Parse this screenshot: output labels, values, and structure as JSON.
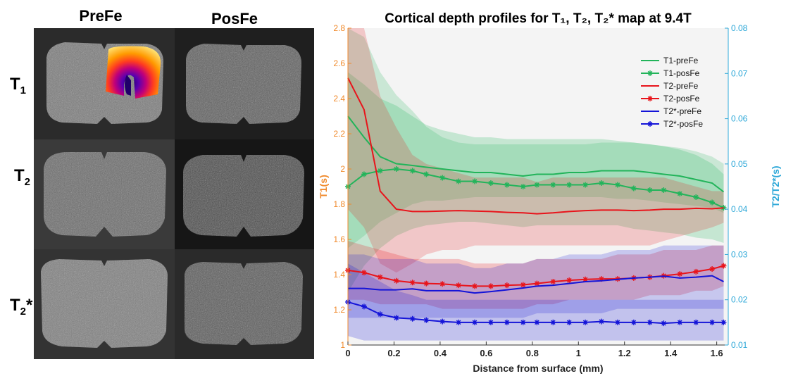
{
  "figure": {
    "column_headers": [
      "PreFe",
      "PosFe"
    ],
    "row_labels": [
      {
        "base": "T",
        "sub": "1",
        "sup": ""
      },
      {
        "base": "T",
        "sub": "2",
        "sup": ""
      },
      {
        "base": "T",
        "sub": "2",
        "sup": "*"
      }
    ]
  },
  "chart_data": {
    "type": "line",
    "title": "Cortical depth profiles for T₁, T₂, T₂* map at 9.4T",
    "xlabel": "Distance from surface (mm)",
    "ylabel_left": "T1(s)",
    "ylabel_right": "T2/T2*(s)",
    "xlim": [
      0,
      1.65
    ],
    "ylim_left": [
      1.0,
      2.8
    ],
    "ylim_right": [
      0.01,
      0.08
    ],
    "xticks": [
      "0",
      "0.2",
      "0.4",
      "0.6",
      "0.8",
      "1",
      "1.2",
      "1.4",
      "1.6"
    ],
    "yticks_left": [
      "1",
      "1.2",
      "1.4",
      "1.6",
      "1.8",
      "2",
      "2.2",
      "2.4",
      "2.6",
      "2.8"
    ],
    "yticks_right": [
      "0.01",
      "0.02",
      "0.03",
      "0.04",
      "0.05",
      "0.06",
      "0.07",
      "0.08"
    ],
    "left_axis_color": "#f08a2c",
    "right_axis_color": "#2ea8d8",
    "grid": false,
    "legend_position": "top-right",
    "x": [
      0,
      0.07,
      0.14,
      0.21,
      0.28,
      0.34,
      0.41,
      0.48,
      0.55,
      0.62,
      0.69,
      0.76,
      0.82,
      0.89,
      0.96,
      1.03,
      1.1,
      1.17,
      1.24,
      1.31,
      1.37,
      1.44,
      1.51,
      1.58,
      1.63
    ],
    "series": [
      {
        "name": "T1-preFe",
        "axis": "left",
        "color": "#22b45a",
        "marker": "none",
        "values": [
          2.3,
          2.18,
          2.07,
          2.03,
          2.02,
          2.01,
          2.0,
          1.99,
          1.98,
          1.98,
          1.97,
          1.96,
          1.97,
          1.97,
          1.98,
          1.98,
          1.99,
          1.99,
          1.99,
          1.98,
          1.97,
          1.96,
          1.94,
          1.92,
          1.87
        ],
        "band": [
          2.9,
          2.75,
          2.55,
          2.42,
          2.33,
          2.24,
          2.18,
          2.15,
          2.14,
          2.14,
          2.14,
          2.14,
          2.14,
          2.14,
          2.14,
          2.14,
          2.15,
          2.15,
          2.15,
          2.14,
          2.13,
          2.12,
          2.1,
          2.07,
          2.03
        ],
        "band_low": [
          1.55,
          1.62,
          1.7,
          1.75,
          1.8,
          1.82,
          1.82,
          1.83,
          1.84,
          1.84,
          1.84,
          1.84,
          1.84,
          1.84,
          1.84,
          1.84,
          1.84,
          1.83,
          1.83,
          1.82,
          1.81,
          1.8,
          1.79,
          1.78,
          1.75
        ]
      },
      {
        "name": "T1-posFe",
        "axis": "left",
        "color": "#22b45a",
        "marker": "star",
        "values": [
          1.9,
          1.97,
          1.99,
          2.0,
          1.99,
          1.97,
          1.95,
          1.93,
          1.93,
          1.92,
          1.91,
          1.9,
          1.91,
          1.91,
          1.91,
          1.91,
          1.92,
          1.91,
          1.89,
          1.88,
          1.88,
          1.86,
          1.84,
          1.81,
          1.78
        ],
        "band": [
          2.55,
          2.48,
          2.4,
          2.36,
          2.3,
          2.25,
          2.22,
          2.2,
          2.18,
          2.18,
          2.17,
          2.17,
          2.17,
          2.17,
          2.17,
          2.17,
          2.17,
          2.16,
          2.15,
          2.14,
          2.13,
          2.11,
          2.08,
          2.03,
          1.97
        ],
        "band_low": [
          1.3,
          1.45,
          1.55,
          1.62,
          1.66,
          1.68,
          1.69,
          1.7,
          1.7,
          1.69,
          1.68,
          1.67,
          1.68,
          1.68,
          1.68,
          1.68,
          1.68,
          1.68,
          1.66,
          1.65,
          1.64,
          1.63,
          1.61,
          1.6,
          1.58
        ]
      },
      {
        "name": "T2-preFe",
        "axis": "right",
        "color": "#e8141b",
        "marker": "none",
        "values": [
          0.069,
          0.062,
          0.044,
          0.04,
          0.0395,
          0.0395,
          0.0396,
          0.0397,
          0.0396,
          0.0395,
          0.0393,
          0.0392,
          0.039,
          0.0392,
          0.0395,
          0.0397,
          0.0398,
          0.0398,
          0.0397,
          0.0398,
          0.04,
          0.04,
          0.0402,
          0.0401,
          0.0403
        ],
        "band": [
          0.09,
          0.082,
          0.065,
          0.058,
          0.052,
          0.05,
          0.049,
          0.048,
          0.047,
          0.047,
          0.047,
          0.047,
          0.046,
          0.047,
          0.047,
          0.047,
          0.047,
          0.047,
          0.047,
          0.047,
          0.047,
          0.046,
          0.045,
          0.044,
          0.044
        ],
        "band_low": [
          0.04,
          0.036,
          0.028,
          0.026,
          0.028,
          0.03,
          0.031,
          0.031,
          0.032,
          0.032,
          0.032,
          0.032,
          0.032,
          0.032,
          0.032,
          0.032,
          0.032,
          0.032,
          0.032,
          0.032,
          0.033,
          0.034,
          0.035,
          0.036,
          0.037
        ]
      },
      {
        "name": "T2-posFe",
        "axis": "right",
        "color": "#e8141b",
        "marker": "star",
        "values": [
          0.0265,
          0.026,
          0.025,
          0.0242,
          0.0238,
          0.0236,
          0.0235,
          0.0232,
          0.023,
          0.023,
          0.0232,
          0.0233,
          0.0236,
          0.024,
          0.0243,
          0.0245,
          0.0246,
          0.0246,
          0.0248,
          0.025,
          0.0253,
          0.0257,
          0.0262,
          0.0268,
          0.0275
        ],
        "band": [
          0.033,
          0.032,
          0.031,
          0.03,
          0.029,
          0.029,
          0.029,
          0.029,
          0.028,
          0.028,
          0.028,
          0.028,
          0.029,
          0.029,
          0.029,
          0.029,
          0.029,
          0.03,
          0.03,
          0.03,
          0.031,
          0.031,
          0.031,
          0.032,
          0.032
        ],
        "band_low": [
          0.02,
          0.02,
          0.019,
          0.019,
          0.019,
          0.019,
          0.018,
          0.018,
          0.018,
          0.018,
          0.018,
          0.018,
          0.019,
          0.019,
          0.02,
          0.02,
          0.02,
          0.02,
          0.02,
          0.021,
          0.021,
          0.021,
          0.022,
          0.022,
          0.023
        ]
      },
      {
        "name": "T2*-preFe",
        "axis": "right",
        "color": "#1414d8",
        "marker": "none",
        "values": [
          0.0225,
          0.0225,
          0.0222,
          0.0222,
          0.0224,
          0.022,
          0.022,
          0.022,
          0.0215,
          0.0218,
          0.0222,
          0.0226,
          0.023,
          0.0232,
          0.0236,
          0.024,
          0.0242,
          0.0245,
          0.0248,
          0.025,
          0.0252,
          0.0248,
          0.025,
          0.0253,
          0.024
        ],
        "band": [
          0.03,
          0.03,
          0.029,
          0.029,
          0.029,
          0.028,
          0.028,
          0.028,
          0.027,
          0.027,
          0.028,
          0.028,
          0.029,
          0.029,
          0.03,
          0.03,
          0.03,
          0.031,
          0.031,
          0.031,
          0.032,
          0.032,
          0.032,
          0.032,
          0.032
        ],
        "band_low": [
          0.016,
          0.016,
          0.016,
          0.016,
          0.016,
          0.016,
          0.016,
          0.016,
          0.016,
          0.016,
          0.016,
          0.016,
          0.017,
          0.017,
          0.017,
          0.017,
          0.017,
          0.018,
          0.018,
          0.018,
          0.018,
          0.018,
          0.018,
          0.018,
          0.018
        ]
      },
      {
        "name": "T2*-posFe",
        "axis": "right",
        "color": "#1414d8",
        "marker": "star",
        "values": [
          0.0195,
          0.0185,
          0.0168,
          0.016,
          0.0158,
          0.0155,
          0.0152,
          0.015,
          0.015,
          0.015,
          0.015,
          0.015,
          0.015,
          0.015,
          0.015,
          0.015,
          0.0152,
          0.015,
          0.015,
          0.015,
          0.0148,
          0.015,
          0.015,
          0.015,
          0.015
        ],
        "band": [
          0.028,
          0.026,
          0.024,
          0.022,
          0.021,
          0.02,
          0.02,
          0.02,
          0.02,
          0.02,
          0.02,
          0.02,
          0.02,
          0.02,
          0.02,
          0.02,
          0.02,
          0.02,
          0.02,
          0.02,
          0.02,
          0.02,
          0.02,
          0.02,
          0.02
        ],
        "band_low": [
          0.012,
          0.011,
          0.011,
          0.011,
          0.011,
          0.011,
          0.011,
          0.011,
          0.011,
          0.011,
          0.011,
          0.011,
          0.011,
          0.011,
          0.011,
          0.011,
          0.011,
          0.011,
          0.011,
          0.011,
          0.011,
          0.011,
          0.011,
          0.011,
          0.011
        ]
      }
    ]
  }
}
